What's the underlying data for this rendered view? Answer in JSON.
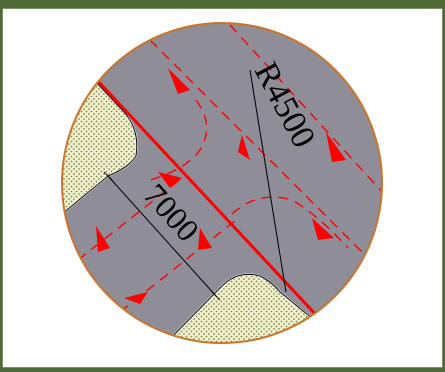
{
  "diagram": {
    "labels": {
      "radius": "R4500",
      "width": "7000"
    },
    "colors": {
      "circle_outline": "#c9752a",
      "road_surface": "#8e8d98",
      "sidewalk": "#f2f0d0",
      "sidewalk_dots": "#7b8a47",
      "centerline": "#ff0000",
      "lane_marks": "#ff0000",
      "dimension_lines": "#000000"
    }
  }
}
